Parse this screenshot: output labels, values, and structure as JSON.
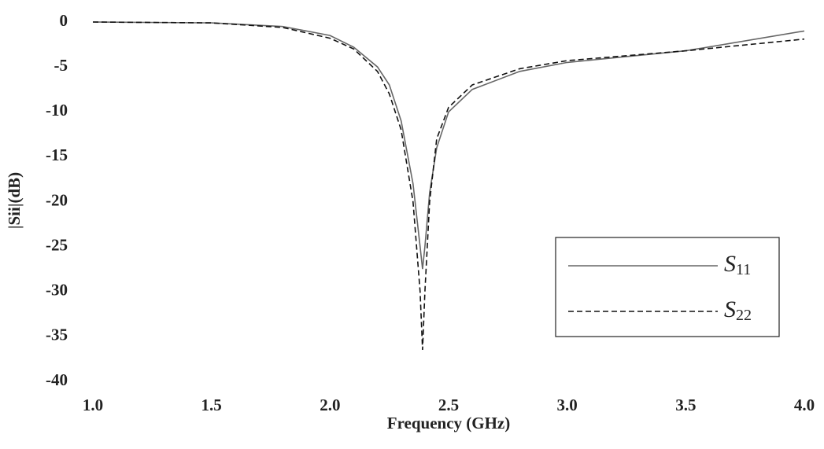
{
  "chart_data": {
    "type": "line",
    "x_label": "Frequency (GHz)",
    "y_label": "|Sii|(dB)",
    "x": [
      1.0,
      1.5,
      1.8,
      2.0,
      2.1,
      2.2,
      2.25,
      2.3,
      2.35,
      2.38,
      2.39,
      2.4,
      2.42,
      2.45,
      2.5,
      2.6,
      2.8,
      3.0,
      3.5,
      4.0
    ],
    "series": [
      {
        "name": "S11",
        "color": "#666666",
        "style": "solid",
        "values": [
          0,
          -0.1,
          -0.5,
          -1.5,
          -2.8,
          -5,
          -7,
          -11,
          -18,
          -25,
          -27.5,
          -25,
          -19,
          -14,
          -10,
          -7.5,
          -5.5,
          -4.5,
          -3.2,
          -1.0
        ]
      },
      {
        "name": "S22",
        "color": "#111111",
        "style": "dashed",
        "values": [
          0,
          -0.1,
          -0.6,
          -1.8,
          -3,
          -5.5,
          -8,
          -12,
          -20,
          -30,
          -36.5,
          -30,
          -20,
          -13,
          -9.5,
          -7,
          -5.2,
          -4.3,
          -3.2,
          -1.9
        ]
      }
    ],
    "xlim": [
      1.0,
      4.0
    ],
    "xticks": [
      {
        "value": 1.0,
        "label": "1.0"
      },
      1.5,
      {
        "value": 2.0,
        "label": "2.0"
      },
      2.5,
      {
        "value": 3.0,
        "label": "3.0"
      },
      3.5,
      {
        "value": 4.0,
        "label": "4.0"
      }
    ],
    "ylim": [
      -40,
      0
    ],
    "yticks": [
      0,
      -5,
      -10,
      -15,
      -20,
      -25,
      -30,
      -35,
      -40
    ],
    "grid": false
  }
}
